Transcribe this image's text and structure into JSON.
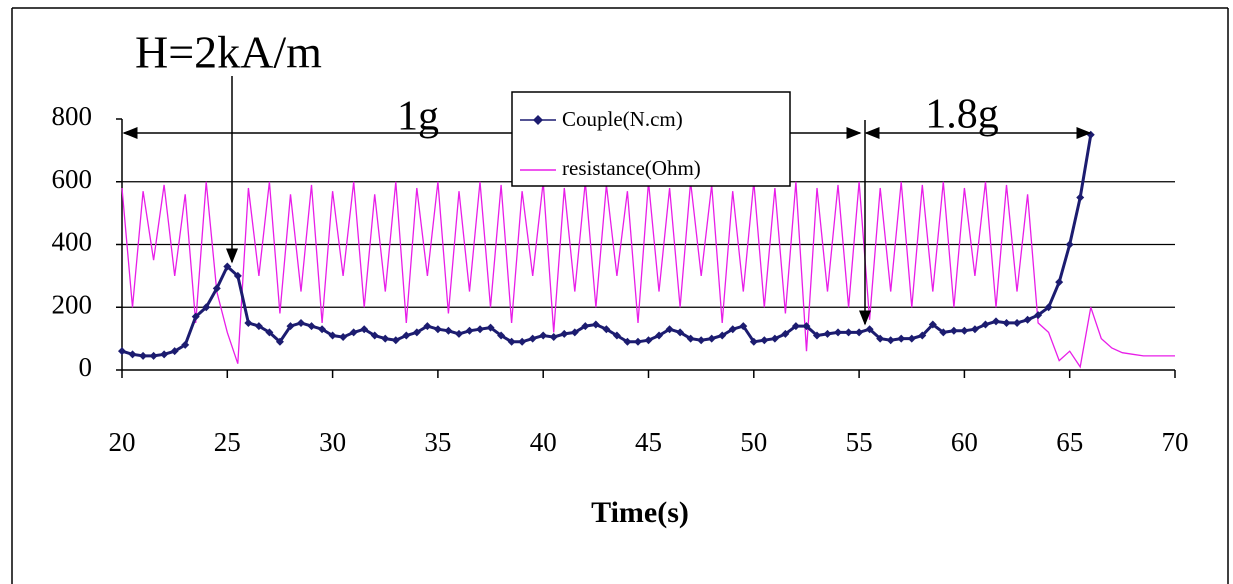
{
  "chart_data": {
    "type": "line",
    "annotations": [
      "H=2kA/m",
      "1g",
      "1.8g"
    ],
    "x_label": "Time(s)",
    "x": [
      20,
      20.5,
      21,
      21.5,
      22,
      22.5,
      23,
      23.5,
      24,
      24.5,
      25,
      25.5,
      26,
      26.5,
      27,
      27.5,
      28,
      28.5,
      29,
      29.5,
      30,
      30.5,
      31,
      31.5,
      32,
      32.5,
      33,
      33.5,
      34,
      34.5,
      35,
      35.5,
      36,
      36.5,
      37,
      37.5,
      38,
      38.5,
      39,
      39.5,
      40,
      40.5,
      41,
      41.5,
      42,
      42.5,
      43,
      43.5,
      44,
      44.5,
      45,
      45.5,
      46,
      46.5,
      47,
      47.5,
      48,
      48.5,
      49,
      49.5,
      50,
      50.5,
      51,
      51.5,
      52,
      52.5,
      53,
      53.5,
      54,
      54.5,
      55,
      55.5,
      56,
      56.5,
      57,
      57.5,
      58,
      58.5,
      59,
      59.5,
      60,
      60.5,
      61,
      61.5,
      62,
      62.5,
      63,
      63.5,
      64,
      64.5,
      65,
      65.5,
      66,
      66.5,
      67,
      67.5,
      68,
      68.5,
      69,
      69.5,
      70
    ],
    "series": [
      {
        "name": "Couple(N.cm)",
        "color": "#1c1c70",
        "marker": "diamond",
        "values": [
          60,
          50,
          45,
          45,
          50,
          60,
          80,
          170,
          200,
          260,
          330,
          300,
          150,
          140,
          120,
          90,
          140,
          150,
          140,
          130,
          110,
          105,
          120,
          130,
          110,
          100,
          95,
          110,
          120,
          140,
          130,
          125,
          115,
          125,
          130,
          135,
          110,
          90,
          90,
          100,
          110,
          105,
          115,
          120,
          140,
          145,
          130,
          110,
          90,
          90,
          95,
          110,
          130,
          120,
          100,
          95,
          100,
          110,
          130,
          140,
          90,
          95,
          100,
          115,
          140,
          140,
          110,
          115,
          120,
          120,
          120,
          130,
          100,
          95,
          100,
          100,
          110,
          145,
          120,
          125,
          125,
          130,
          145,
          155,
          150,
          150,
          160,
          175,
          200,
          280,
          400,
          550,
          750,
          null,
          null,
          null,
          null,
          null,
          null,
          null,
          null
        ]
      },
      {
        "name": "resistance(Ohm)",
        "color": "#e81ee8",
        "marker": "none",
        "values": [
          580,
          200,
          570,
          350,
          590,
          300,
          560,
          150,
          600,
          250,
          120,
          20,
          580,
          300,
          600,
          180,
          560,
          250,
          590,
          150,
          570,
          300,
          600,
          200,
          560,
          250,
          600,
          150,
          580,
          300,
          600,
          180,
          570,
          250,
          600,
          200,
          590,
          150,
          570,
          300,
          600,
          120,
          580,
          250,
          600,
          200,
          590,
          300,
          570,
          150,
          600,
          250,
          580,
          200,
          600,
          300,
          590,
          150,
          570,
          250,
          600,
          200,
          580,
          180,
          600,
          60,
          580,
          250,
          590,
          200,
          600,
          160,
          580,
          250,
          600,
          200,
          590,
          250,
          600,
          200,
          580,
          300,
          600,
          200,
          590,
          250,
          560,
          150,
          120,
          30,
          60,
          10,
          200,
          100,
          70,
          55,
          50,
          45,
          45,
          45,
          45
        ]
      }
    ],
    "xlim": [
      20,
      70
    ],
    "xticks": [
      20,
      25,
      30,
      35,
      40,
      45,
      50,
      55,
      60,
      65,
      70
    ],
    "ylim": [
      0,
      800
    ],
    "yticks": [
      0,
      200,
      400,
      600,
      800
    ],
    "grid": true,
    "legend": "top-center"
  }
}
